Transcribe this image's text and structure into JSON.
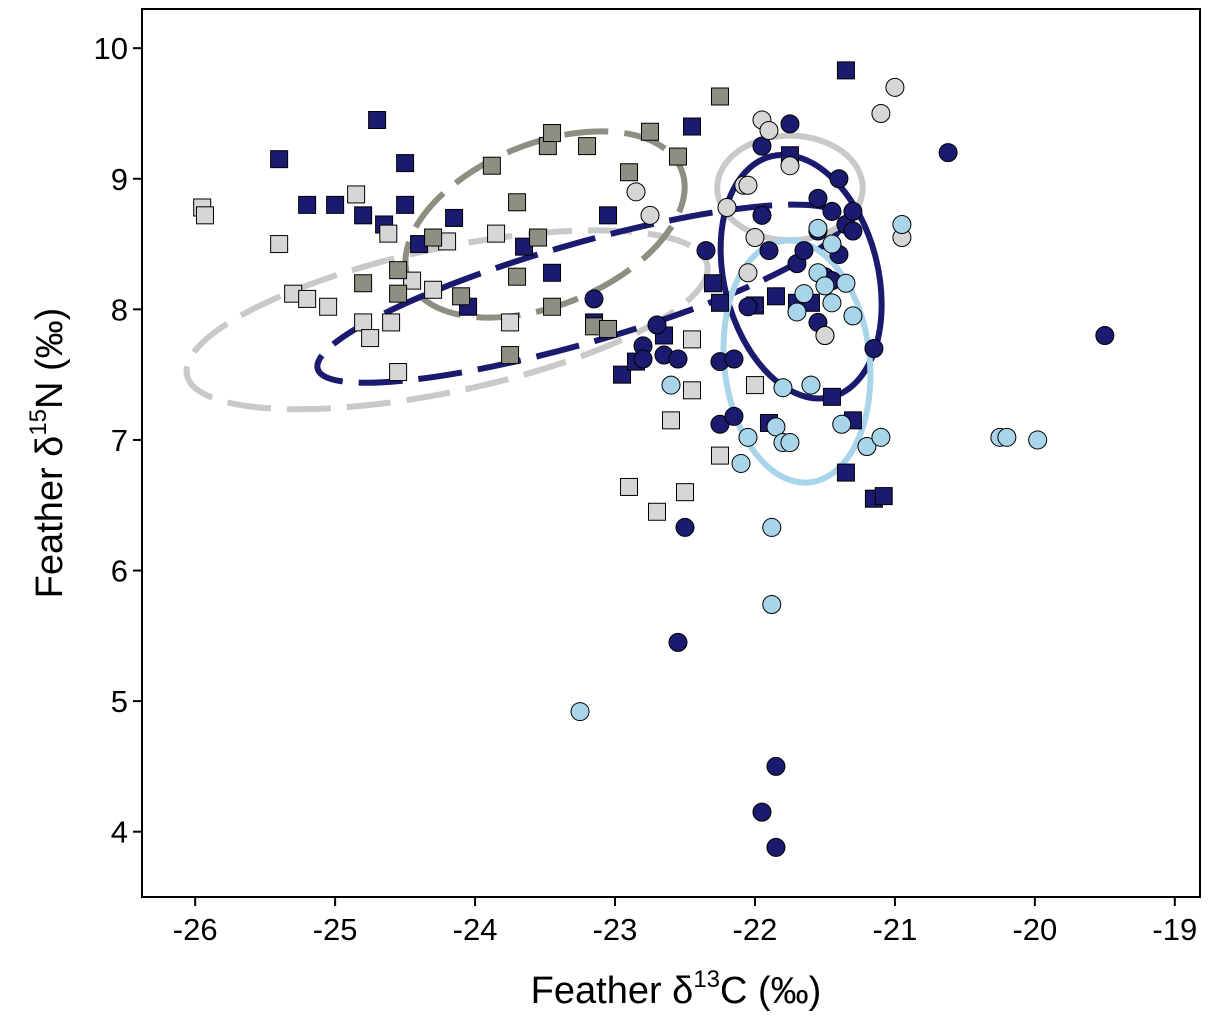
{
  "chart_data": {
    "type": "scatter",
    "xlabel": {
      "prefix": "Feather δ",
      "sup": "13",
      "suffix": "C (‰)"
    },
    "ylabel": {
      "prefix": "Feather δ",
      "sup": "15",
      "suffix": "N (‰)"
    },
    "xlim": [
      -26.38,
      -18.82
    ],
    "ylim": [
      3.5,
      10.3
    ],
    "xticks": [
      -26,
      -25,
      -24,
      -23,
      -22,
      -21,
      -20,
      -19
    ],
    "yticks": [
      4,
      5,
      6,
      7,
      8,
      9,
      10
    ],
    "grid": false,
    "legend": "none",
    "series": [
      {
        "marker": "square",
        "fill": "#1a1a6e",
        "points": [
          [
            -25.4,
            9.15
          ],
          [
            -24.7,
            9.45
          ],
          [
            -24.5,
            9.12
          ],
          [
            -25.2,
            8.8
          ],
          [
            -25.0,
            8.8
          ],
          [
            -24.8,
            8.72
          ],
          [
            -24.65,
            8.65
          ],
          [
            -24.5,
            8.8
          ],
          [
            -24.4,
            8.5
          ],
          [
            -24.15,
            8.7
          ],
          [
            -24.05,
            8.02
          ],
          [
            -23.65,
            8.48
          ],
          [
            -23.45,
            8.28
          ],
          [
            -23.15,
            7.9
          ],
          [
            -23.05,
            8.72
          ],
          [
            -22.95,
            7.5
          ],
          [
            -22.85,
            7.6
          ],
          [
            -22.65,
            7.8
          ],
          [
            -22.45,
            9.4
          ],
          [
            -22.3,
            8.2
          ],
          [
            -22.25,
            8.05
          ],
          [
            -22.0,
            8.03
          ],
          [
            -21.85,
            8.1
          ],
          [
            -21.75,
            9.18
          ],
          [
            -21.7,
            8.05
          ],
          [
            -21.6,
            8.05
          ],
          [
            -21.35,
            9.83
          ],
          [
            -21.45,
            7.33
          ],
          [
            -21.3,
            7.15
          ],
          [
            -21.35,
            6.75
          ],
          [
            -21.15,
            6.55
          ],
          [
            -21.08,
            6.57
          ],
          [
            -21.9,
            7.13
          ]
        ]
      },
      {
        "marker": "square",
        "fill": "#d6d6d6",
        "points": [
          [
            -25.95,
            8.78
          ],
          [
            -25.93,
            8.72
          ],
          [
            -25.4,
            8.5
          ],
          [
            -25.3,
            8.12
          ],
          [
            -25.2,
            8.08
          ],
          [
            -25.05,
            8.02
          ],
          [
            -24.85,
            8.88
          ],
          [
            -24.8,
            7.9
          ],
          [
            -24.75,
            7.78
          ],
          [
            -24.6,
            7.9
          ],
          [
            -24.55,
            7.52
          ],
          [
            -24.62,
            8.58
          ],
          [
            -24.45,
            8.22
          ],
          [
            -24.3,
            8.15
          ],
          [
            -24.2,
            8.52
          ],
          [
            -23.85,
            8.58
          ],
          [
            -23.75,
            7.9
          ],
          [
            -22.9,
            6.64
          ],
          [
            -22.7,
            6.45
          ],
          [
            -22.6,
            7.15
          ],
          [
            -22.5,
            6.6
          ],
          [
            -22.45,
            7.38
          ],
          [
            -22.45,
            7.77
          ],
          [
            -22.25,
            6.88
          ],
          [
            -22.0,
            7.42
          ]
        ]
      },
      {
        "marker": "square",
        "fill": "#8e8e82",
        "points": [
          [
            -24.8,
            8.2
          ],
          [
            -24.55,
            8.3
          ],
          [
            -24.55,
            8.12
          ],
          [
            -24.3,
            8.55
          ],
          [
            -24.1,
            8.1
          ],
          [
            -23.88,
            9.1
          ],
          [
            -23.7,
            8.82
          ],
          [
            -23.7,
            8.25
          ],
          [
            -23.55,
            8.55
          ],
          [
            -23.48,
            9.25
          ],
          [
            -23.45,
            9.35
          ],
          [
            -23.45,
            8.02
          ],
          [
            -23.2,
            9.25
          ],
          [
            -23.15,
            7.87
          ],
          [
            -23.05,
            7.85
          ],
          [
            -22.9,
            9.05
          ],
          [
            -22.75,
            9.36
          ],
          [
            -22.55,
            9.17
          ],
          [
            -22.25,
            9.63
          ],
          [
            -23.75,
            7.65
          ]
        ]
      },
      {
        "marker": "circle",
        "fill": "#1a1a6e",
        "points": [
          [
            -23.15,
            8.08
          ],
          [
            -22.8,
            7.72
          ],
          [
            -22.8,
            7.62
          ],
          [
            -22.7,
            7.88
          ],
          [
            -22.65,
            7.65
          ],
          [
            -22.55,
            7.62
          ],
          [
            -22.35,
            8.45
          ],
          [
            -22.25,
            7.6
          ],
          [
            -22.15,
            7.62
          ],
          [
            -22.25,
            7.12
          ],
          [
            -22.15,
            7.18
          ],
          [
            -22.05,
            8.02
          ],
          [
            -21.95,
            9.25
          ],
          [
            -21.95,
            8.72
          ],
          [
            -21.9,
            8.45
          ],
          [
            -21.75,
            9.42
          ],
          [
            -21.7,
            8.35
          ],
          [
            -21.65,
            8.45
          ],
          [
            -21.55,
            8.85
          ],
          [
            -21.55,
            8.6
          ],
          [
            -21.45,
            8.75
          ],
          [
            -21.4,
            9.0
          ],
          [
            -21.35,
            8.65
          ],
          [
            -21.3,
            8.75
          ],
          [
            -21.3,
            8.6
          ],
          [
            -21.4,
            8.42
          ],
          [
            -21.5,
            8.25
          ],
          [
            -21.55,
            7.9
          ],
          [
            -21.45,
            8.22
          ],
          [
            -21.15,
            7.7
          ],
          [
            -20.62,
            9.2
          ],
          [
            -19.5,
            7.8
          ],
          [
            -22.5,
            6.33
          ],
          [
            -22.55,
            5.45
          ],
          [
            -21.85,
            4.5
          ],
          [
            -21.95,
            4.15
          ],
          [
            -21.85,
            3.88
          ],
          [
            -21.5,
            7.8
          ]
        ]
      },
      {
        "marker": "circle",
        "fill": "#d6d6d6",
        "points": [
          [
            -22.85,
            8.9
          ],
          [
            -22.75,
            8.72
          ],
          [
            -22.2,
            8.78
          ],
          [
            -22.08,
            8.95
          ],
          [
            -22.05,
            8.95
          ],
          [
            -21.95,
            9.45
          ],
          [
            -21.9,
            9.37
          ],
          [
            -21.75,
            9.1
          ],
          [
            -22.05,
            8.28
          ],
          [
            -21.5,
            7.8
          ],
          [
            -21.1,
            9.5
          ],
          [
            -21.0,
            9.7
          ],
          [
            -20.95,
            8.55
          ],
          [
            -21.45,
            8.5
          ],
          [
            -22.0,
            8.55
          ]
        ]
      },
      {
        "marker": "circle",
        "fill": "#a9d5ea",
        "points": [
          [
            -23.25,
            4.92
          ],
          [
            -22.6,
            7.42
          ],
          [
            -22.1,
            6.82
          ],
          [
            -22.05,
            7.02
          ],
          [
            -21.85,
            7.1
          ],
          [
            -21.8,
            7.4
          ],
          [
            -21.8,
            6.98
          ],
          [
            -21.75,
            6.98
          ],
          [
            -21.7,
            7.98
          ],
          [
            -21.6,
            7.42
          ],
          [
            -21.55,
            8.62
          ],
          [
            -21.55,
            8.28
          ],
          [
            -21.5,
            8.18
          ],
          [
            -21.45,
            8.05
          ],
          [
            -21.45,
            8.5
          ],
          [
            -21.35,
            8.2
          ],
          [
            -21.3,
            7.95
          ],
          [
            -21.38,
            7.12
          ],
          [
            -21.2,
            6.95
          ],
          [
            -21.1,
            7.02
          ],
          [
            -20.95,
            8.65
          ],
          [
            -20.25,
            7.02
          ],
          [
            -20.2,
            7.02
          ],
          [
            -19.98,
            7.0
          ],
          [
            -21.88,
            6.33
          ],
          [
            -21.88,
            5.74
          ],
          [
            -21.65,
            8.12
          ]
        ]
      }
    ],
    "ellipses": [
      {
        "color": "#c9c9c9",
        "dashed": true,
        "cx": -24.2,
        "cy": 7.92,
        "rx": 1.9,
        "ry": 0.55,
        "angle": -12
      },
      {
        "color": "#8e8e82",
        "dashed": true,
        "cx": -23.5,
        "cy": 8.65,
        "rx": 1.05,
        "ry": 0.62,
        "angle": -22
      },
      {
        "color": "#1a1a6e",
        "dashed": true,
        "cx": -23.25,
        "cy": 8.12,
        "rx": 1.95,
        "ry": 0.38,
        "angle": -16
      },
      {
        "color": "#c9c9c9",
        "dashed": false,
        "cx": -21.75,
        "cy": 8.93,
        "rx": 0.52,
        "ry": 0.4,
        "angle": 0
      },
      {
        "color": "#1a1a6e",
        "dashed": false,
        "cx": -21.67,
        "cy": 8.25,
        "rx": 0.55,
        "ry": 0.95,
        "angle": -14
      },
      {
        "color": "#a9d5ea",
        "dashed": false,
        "cx": -21.7,
        "cy": 7.6,
        "rx": 0.52,
        "ry": 0.93,
        "angle": -6
      }
    ]
  }
}
